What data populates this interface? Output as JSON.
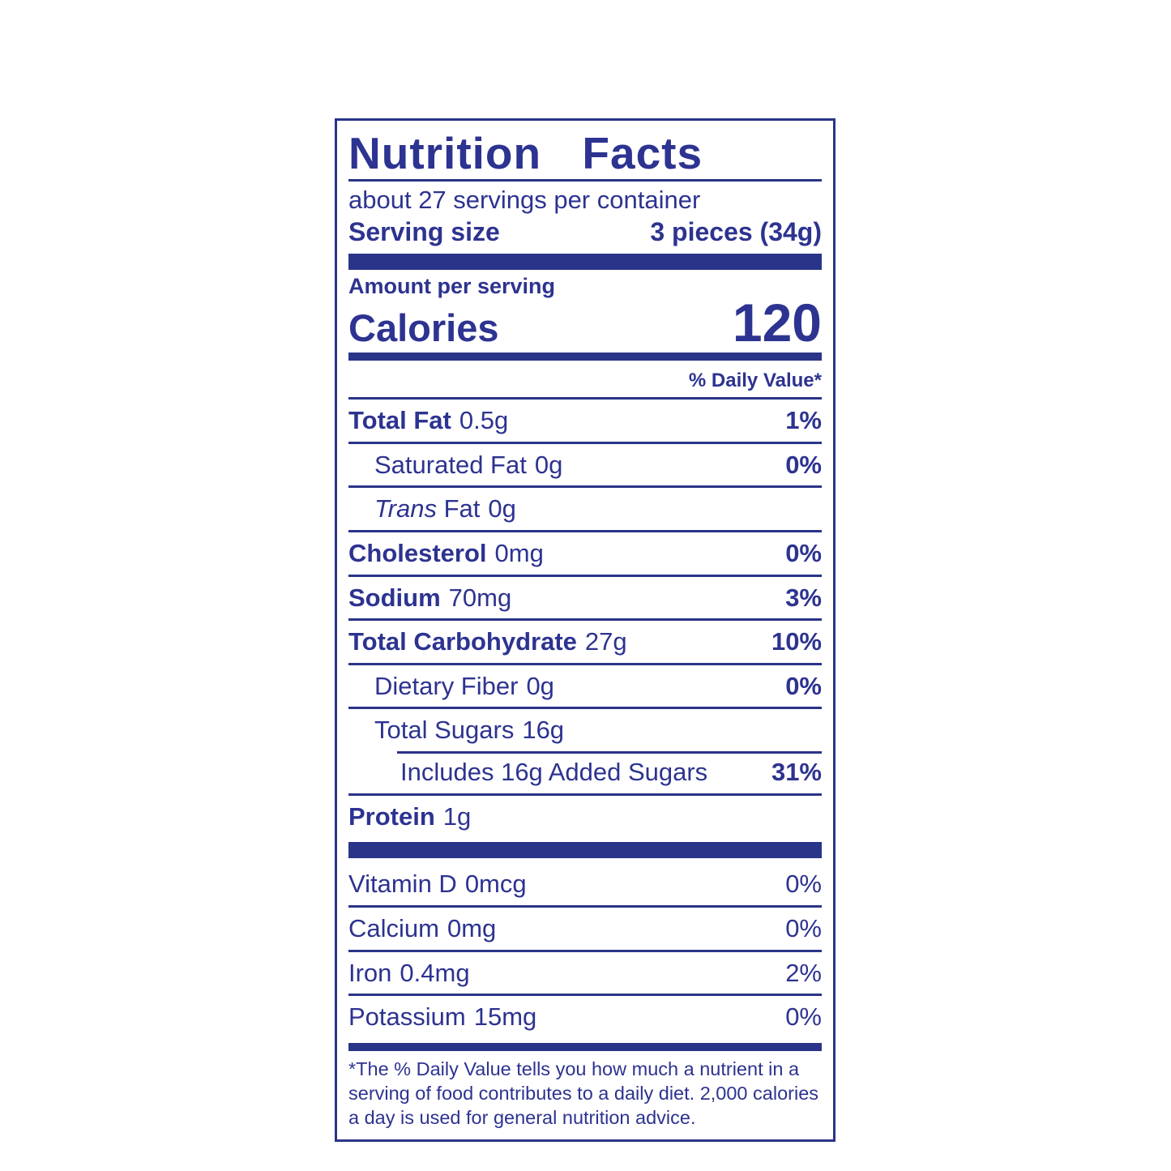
{
  "label": {
    "title": "Nutrition Facts",
    "servings_per_container": "about 27 servings per container",
    "serving_size_label": "Serving size",
    "serving_size_value": "3 pieces (34g)",
    "amount_per_serving_label": "Amount per serving",
    "calories_label": "Calories",
    "calories_value": "120",
    "daily_value_header": "% Daily Value*",
    "nutrients": [
      {
        "name": "Total Fat",
        "amount": "0.5g",
        "dv": "1%"
      },
      {
        "name": "Saturated Fat",
        "amount": "0g",
        "dv": "0%"
      },
      {
        "name_italic": "Trans",
        "name": " Fat",
        "amount": "0g",
        "dv": ""
      },
      {
        "name": "Cholesterol",
        "amount": "0mg",
        "dv": "0%"
      },
      {
        "name": "Sodium",
        "amount": "70mg",
        "dv": "3%"
      },
      {
        "name": "Total Carbohydrate",
        "amount": "27g",
        "dv": "10%"
      },
      {
        "name": "Dietary Fiber",
        "amount": "0g",
        "dv": "0%"
      },
      {
        "name": "Total Sugars",
        "amount": "16g",
        "dv": ""
      },
      {
        "name": "Includes 16g Added Sugars",
        "amount": "",
        "dv": "31%"
      },
      {
        "name": "Protein",
        "amount": "1g",
        "dv": ""
      }
    ],
    "vitamins": [
      {
        "name": "Vitamin D",
        "amount": "0mcg",
        "dv": "0%"
      },
      {
        "name": "Calcium",
        "amount": "0mg",
        "dv": "0%"
      },
      {
        "name": "Iron",
        "amount": "0.4mg",
        "dv": "2%"
      },
      {
        "name": "Potassium",
        "amount": "15mg",
        "dv": "0%"
      }
    ],
    "footnote": "*The % Daily Value tells you how much a nutrient in a serving of food contributes to a daily diet. 2,000 calories a day is used for general nutrition advice.",
    "colors": {
      "ink": "#2d3390",
      "bar": "#2a3488",
      "background": "#ffffff"
    }
  }
}
